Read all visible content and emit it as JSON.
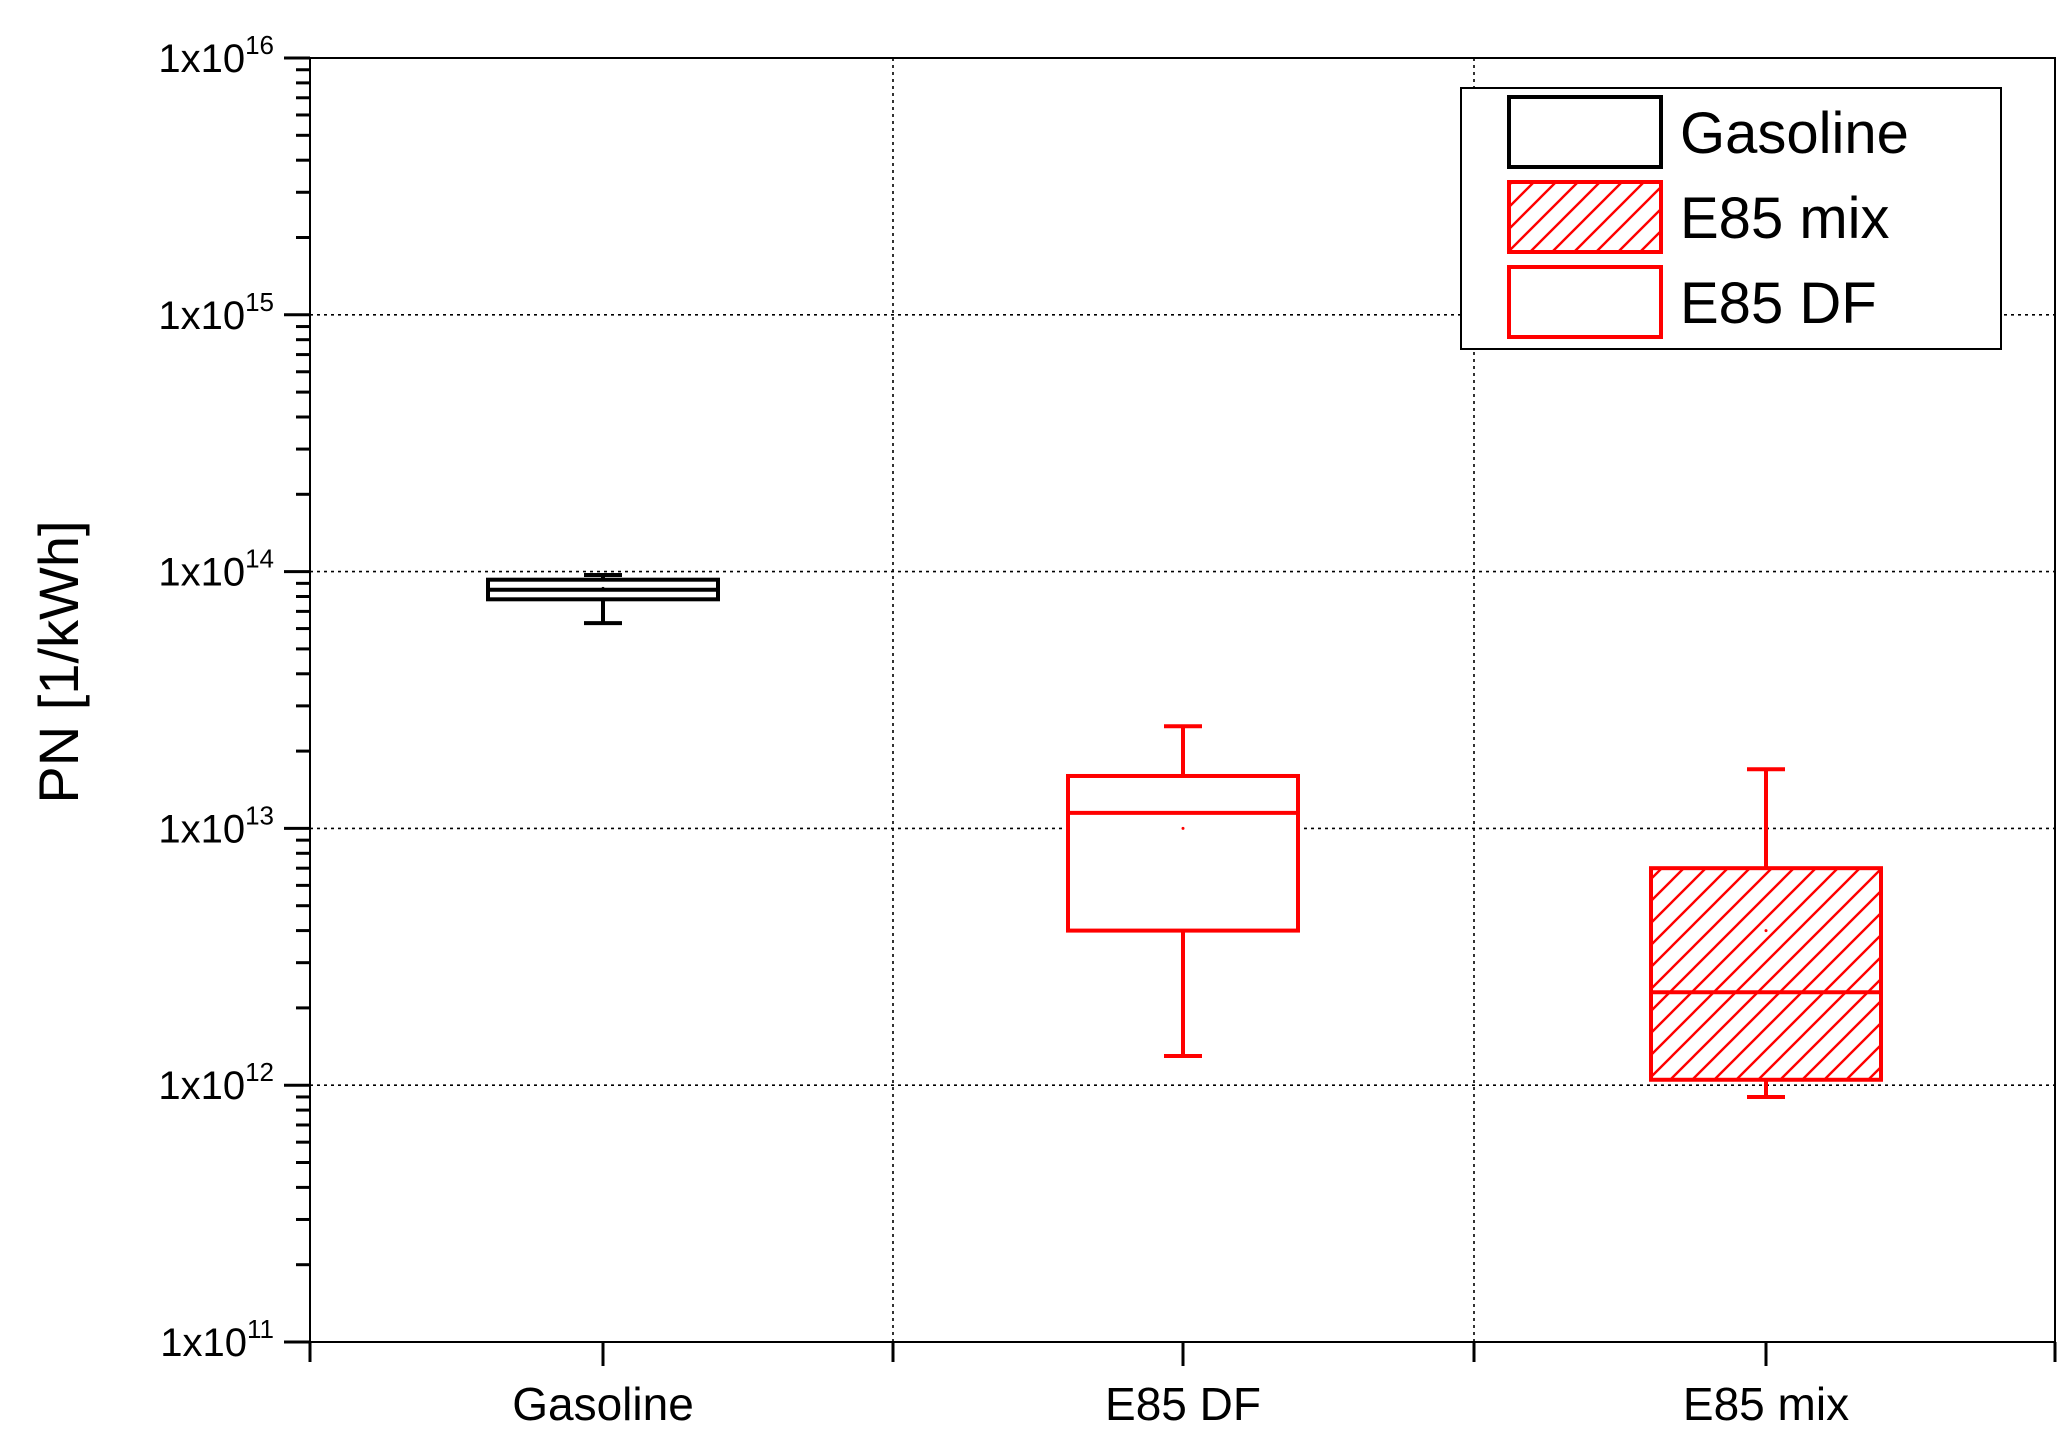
{
  "chart_data": {
    "type": "box",
    "ylabel": "PN [1/kWh]",
    "xlabel": "",
    "y_scale": "log",
    "ylim": [
      100000000000.0,
      1e+16
    ],
    "y_ticks": [
      {
        "value": 100000000000.0,
        "base": "1x10",
        "exp": "11"
      },
      {
        "value": 1000000000000.0,
        "base": "1x10",
        "exp": "12"
      },
      {
        "value": 10000000000000.0,
        "base": "1x10",
        "exp": "13"
      },
      {
        "value": 100000000000000.0,
        "base": "1x10",
        "exp": "14"
      },
      {
        "value": 1000000000000000.0,
        "base": "1x10",
        "exp": "15"
      },
      {
        "value": 1e+16,
        "base": "1x10",
        "exp": "16"
      }
    ],
    "categories": [
      "Gasoline",
      "E85 DF",
      "E85 mix"
    ],
    "grid": true,
    "legend_position": "top-right",
    "boxes": [
      {
        "category": "Gasoline",
        "series": "Gasoline",
        "color": "#000000",
        "hatched": false,
        "whisker_low": 63000000000000.0,
        "q1": 78000000000000.0,
        "median": 85000000000000.0,
        "q3": 93000000000000.0,
        "whisker_high": 97000000000000.0,
        "mean": 86000000000000.0
      },
      {
        "category": "E85 DF",
        "series": "E85 DF",
        "color": "#ff0000",
        "hatched": false,
        "whisker_low": 1300000000000.0,
        "q1": 4000000000000.0,
        "median": 11500000000000.0,
        "q3": 16000000000000.0,
        "whisker_high": 25000000000000.0,
        "mean": 10000000000000.0
      },
      {
        "category": "E85 mix",
        "series": "E85 mix",
        "color": "#ff0000",
        "hatched": true,
        "whisker_low": 900000000000.0,
        "q1": 1050000000000.0,
        "median": 2300000000000.0,
        "q3": 7000000000000.0,
        "whisker_high": 17000000000000.0,
        "mean": 4000000000000.0
      }
    ],
    "legend": [
      {
        "name": "Gasoline",
        "color": "#000000",
        "hatched": false
      },
      {
        "name": "E85 mix",
        "color": "#ff0000",
        "hatched": true
      },
      {
        "name": "E85 DF",
        "color": "#ff0000",
        "hatched": false
      }
    ]
  }
}
